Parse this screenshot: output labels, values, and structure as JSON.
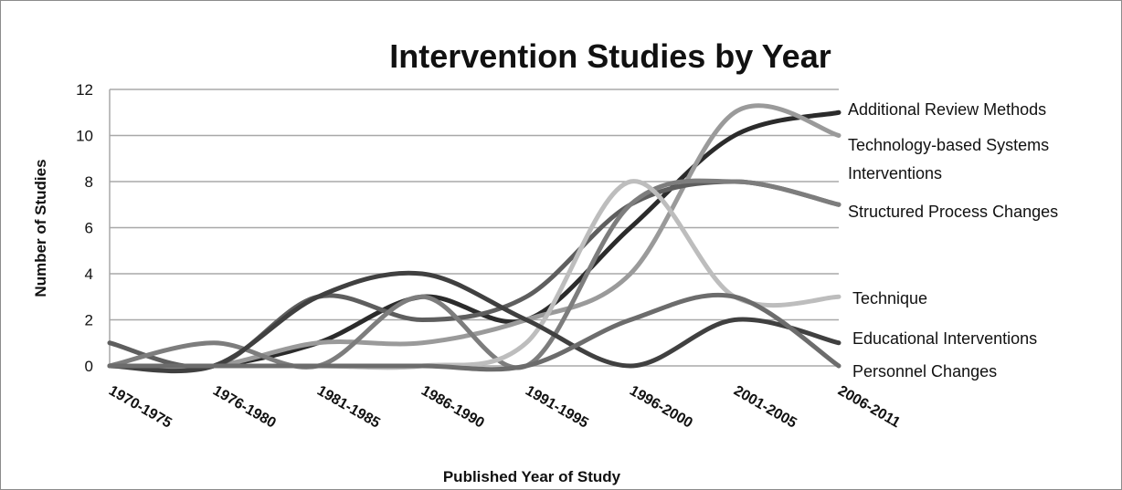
{
  "chart_data": {
    "type": "line",
    "title": "Intervention Studies by Year",
    "xlabel": "Published Year of Study",
    "ylabel": "Number of Studies",
    "ylim": [
      0,
      12
    ],
    "yticks": [
      "0",
      "2",
      "4",
      "6",
      "8",
      "10",
      "12"
    ],
    "grid": "horizontal",
    "legend_position": "right, labels at line ends",
    "categories": [
      "1970-1975",
      "1976-1980",
      "1981-1985",
      "1986-1990",
      "1991-1995",
      "1996-2000",
      "2001-2005",
      "2006-2011"
    ],
    "series": [
      {
        "name": "Additional Review Methods",
        "color": "#2b2b2b",
        "values": [
          0,
          0,
          1,
          3,
          2,
          6,
          10,
          11
        ]
      },
      {
        "name": "Technology-based Systems",
        "color": "#9a9a9a",
        "values": [
          0,
          0,
          1,
          1,
          2,
          4,
          11,
          10
        ]
      },
      {
        "name": "Interventions",
        "color": "#5e5e5e",
        "values": [
          1,
          0,
          3,
          2,
          3,
          7,
          8,
          7
        ]
      },
      {
        "name": "Structured Process Changes",
        "color": "#7d7d7d",
        "values": [
          0,
          1,
          0,
          3,
          0,
          7,
          8,
          7
        ]
      },
      {
        "name": "Technique",
        "color": "#bdbdbd",
        "values": [
          0,
          0,
          0,
          0,
          1,
          8,
          3,
          3
        ]
      },
      {
        "name": "Educational Interventions",
        "color": "#404040",
        "values": [
          0,
          0,
          3,
          4,
          2,
          0,
          2,
          1
        ]
      },
      {
        "name": "Personnel Changes",
        "color": "#6c6c6c",
        "values": [
          0,
          0,
          0,
          0,
          0,
          2,
          3,
          0
        ]
      }
    ]
  }
}
